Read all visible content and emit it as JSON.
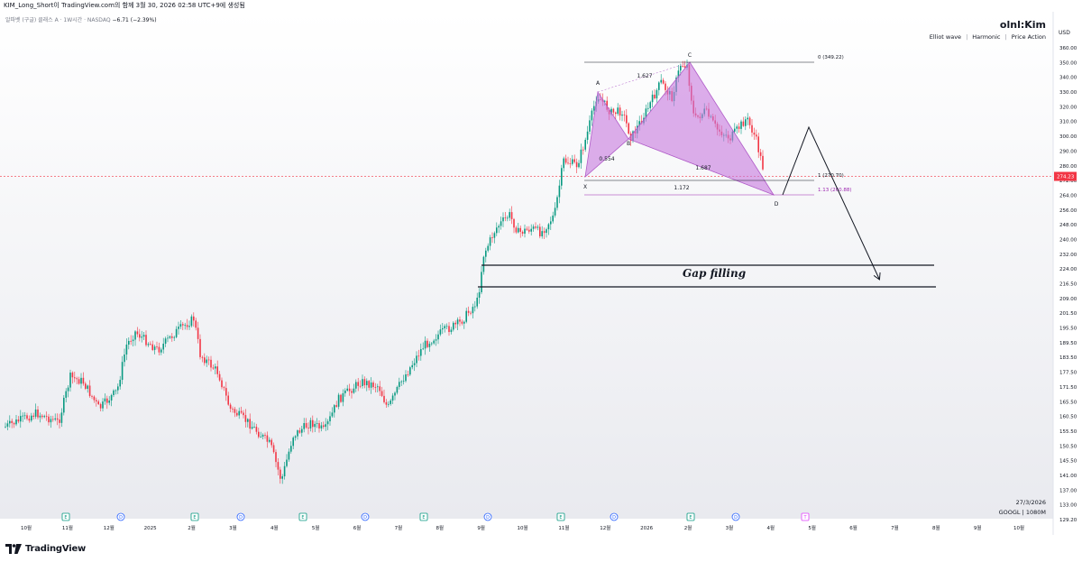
{
  "window": {
    "caption": "KIM_Long_Short이 TradingView.com의 함께 3월 30, 2026 02:58 UTC+9에 생성됨"
  },
  "header": {
    "symbol": "알파벳 (구글) 클래스 A · 1W시간 · NASDAQ",
    "change": "−6.71 (−2.39%)",
    "author": "olnl:Kim",
    "tags": [
      "Elliot wave",
      "Harmonic",
      "Price Action"
    ],
    "currency": "USD"
  },
  "annotations": {
    "gap_text": "Gap filling",
    "ratio_ab": "0.554",
    "ratio_bc": "1.627",
    "ratio_cd": "1.687",
    "ratio_xd": "1.172",
    "level_0": "0 (349.22)",
    "level_1": "1 (270.70)",
    "level_113": "1.13 (260.88)",
    "points": [
      "X",
      "A",
      "B",
      "C",
      "D"
    ]
  },
  "footer": {
    "date": "27/3/2026",
    "symbol_vol": "GOOGL | 1080M",
    "logo_text": "TradingView"
  },
  "chart_data": {
    "type": "candlestick",
    "price_axis": [
      "360.00",
      "350.00",
      "340.00",
      "330.00",
      "320.00",
      "310.00",
      "300.00",
      "290.00",
      "280.00",
      "272.00",
      "264.00",
      "256.00",
      "248.00",
      "240.00",
      "232.00",
      "224.00",
      "216.50",
      "209.00",
      "201.50",
      "195.50",
      "189.50",
      "183.50",
      "177.50",
      "171.50",
      "165.50",
      "160.50",
      "155.50",
      "150.50",
      "145.50",
      "141.00",
      "137.00",
      "133.00",
      "129.20"
    ],
    "last_price": "274.23",
    "time_axis": [
      "10월",
      "11월",
      "12월",
      "2025",
      "2월",
      "3월",
      "4월",
      "5월",
      "6월",
      "7월",
      "8월",
      "9월",
      "10월",
      "11월",
      "12월",
      "2026",
      "2월",
      "3월",
      "4월",
      "5월",
      "6월",
      "7월",
      "8월",
      "9월",
      "10월"
    ],
    "event_markers": [
      "E",
      "D",
      "E",
      "D",
      "E",
      "D",
      "E",
      "D",
      "E",
      "D",
      "E",
      "D",
      "T"
    ],
    "harmonic_pattern": {
      "X": 272.0,
      "A": 330.0,
      "B": 297.0,
      "C": 349.22,
      "D": 260.88
    }
  }
}
